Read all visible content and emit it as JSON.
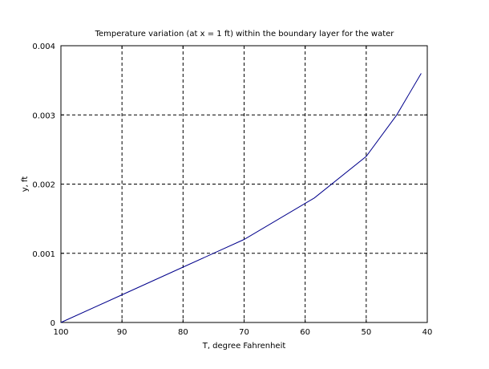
{
  "chart_data": {
    "type": "line",
    "title": "Temperature variation (at x = 1 ft) within the boundary layer for the water",
    "xlabel": "T, degree Fahrenheit",
    "ylabel": "y, ft",
    "xlim": [
      100,
      40
    ],
    "ylim": [
      0,
      0.004
    ],
    "x_reversed": true,
    "x_ticks": [
      100,
      90,
      80,
      70,
      60,
      50,
      40
    ],
    "y_ticks": [
      0,
      0.001,
      0.002,
      0.003,
      0.004
    ],
    "x_tick_labels": [
      "100",
      "90",
      "80",
      "70",
      "60",
      "50",
      "40"
    ],
    "y_tick_labels": [
      "0",
      "0.001",
      "0.002",
      "0.003",
      "0.004"
    ],
    "grid": true,
    "series": [
      {
        "color": "#00008b",
        "x": [
          100,
          90,
          80,
          70,
          58.5,
          50,
          45,
          41
        ],
        "y": [
          0,
          0.0004,
          0.0008,
          0.0012,
          0.0018,
          0.0024,
          0.003,
          0.0036
        ]
      }
    ]
  }
}
